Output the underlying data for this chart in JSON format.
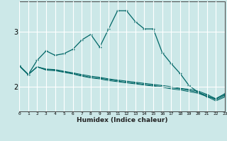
{
  "xlabel": "Humidex (Indice chaleur)",
  "background_color": "#cce8e8",
  "line_color": "#006666",
  "grid_color": "#ffffff",
  "x_ticks": [
    0,
    1,
    2,
    3,
    4,
    5,
    6,
    7,
    8,
    9,
    10,
    11,
    12,
    13,
    14,
    15,
    16,
    17,
    18,
    19,
    20,
    21,
    22,
    23
  ],
  "y_ticks": [
    2,
    3
  ],
  "ylim": [
    1.55,
    3.55
  ],
  "xlim": [
    0,
    23
  ],
  "curve1_x": [
    0,
    1,
    2,
    3,
    4,
    5,
    6,
    7,
    8,
    9,
    10,
    11,
    12,
    13,
    14,
    15,
    16,
    17,
    18,
    19,
    20,
    21,
    22,
    23
  ],
  "curve1_y": [
    2.38,
    2.22,
    2.48,
    2.65,
    2.57,
    2.6,
    2.68,
    2.85,
    2.95,
    2.72,
    3.05,
    3.38,
    3.38,
    3.18,
    3.05,
    3.05,
    2.62,
    2.42,
    2.24,
    2.02,
    1.9,
    1.82,
    1.78,
    1.87
  ],
  "curve2_x": [
    0,
    1,
    2,
    3,
    4,
    5,
    6,
    7,
    8,
    9,
    10,
    11,
    12,
    13,
    14,
    15,
    16,
    17,
    18,
    19,
    20,
    21,
    22,
    23
  ],
  "curve2_y": [
    2.38,
    2.22,
    2.36,
    2.32,
    2.31,
    2.28,
    2.25,
    2.22,
    2.19,
    2.17,
    2.14,
    2.12,
    2.1,
    2.08,
    2.06,
    2.04,
    2.02,
    2.0,
    1.97,
    1.95,
    1.92,
    1.86,
    1.78,
    1.85
  ],
  "curve3_x": [
    0,
    1,
    2,
    3,
    4,
    5,
    6,
    7,
    8,
    9,
    10,
    11,
    12,
    13,
    14,
    15,
    16,
    17,
    18,
    19,
    20,
    21,
    22,
    23
  ],
  "curve3_y": [
    2.38,
    2.22,
    2.36,
    2.31,
    2.3,
    2.27,
    2.24,
    2.2,
    2.17,
    2.15,
    2.13,
    2.1,
    2.08,
    2.06,
    2.04,
    2.02,
    2.0,
    1.98,
    1.96,
    1.93,
    1.9,
    1.84,
    1.76,
    1.83
  ],
  "curve4_x": [
    0,
    1,
    2,
    3,
    4,
    5,
    6,
    7,
    8,
    9,
    10,
    11,
    12,
    13,
    14,
    15,
    16,
    17,
    18,
    19,
    20,
    21,
    22,
    23
  ],
  "curve4_y": [
    2.38,
    2.22,
    2.36,
    2.3,
    2.29,
    2.26,
    2.23,
    2.19,
    2.16,
    2.14,
    2.11,
    2.09,
    2.07,
    2.05,
    2.03,
    2.01,
    1.99,
    1.96,
    1.94,
    1.91,
    1.88,
    1.82,
    1.74,
    1.81
  ]
}
